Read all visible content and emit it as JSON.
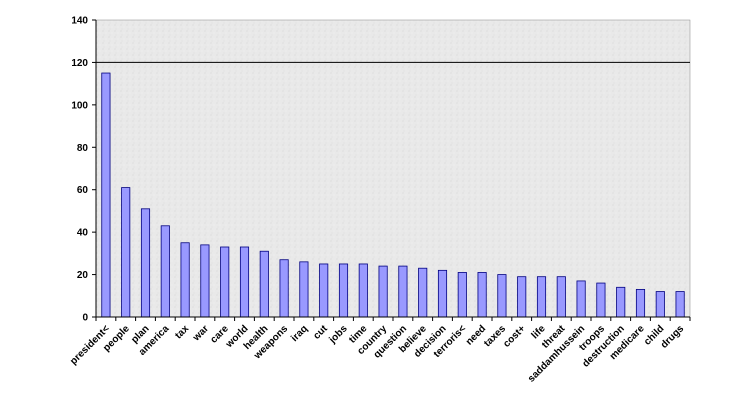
{
  "chart_data": {
    "type": "bar",
    "categories": [
      "president<",
      "people",
      "plan",
      "america",
      "tax",
      "war",
      "care",
      "world",
      "health",
      "weapons",
      "iraq",
      "cut",
      "jobs",
      "time",
      "country",
      "question",
      "believe",
      "decision",
      "terroris<",
      "need",
      "taxes",
      "cost+",
      "life",
      "threat",
      "saddamhussein",
      "troops",
      "destruction",
      "medicare",
      "child",
      "drugs"
    ],
    "values": [
      115,
      61,
      51,
      43,
      35,
      34,
      33,
      33,
      31,
      27,
      26,
      25,
      25,
      25,
      24,
      24,
      23,
      22,
      21,
      21,
      20,
      19,
      19,
      19,
      17,
      16,
      14,
      13,
      12,
      12
    ],
    "ylim": [
      0,
      140
    ],
    "yticks": [
      0,
      20,
      40,
      60,
      80,
      100,
      120,
      140
    ],
    "reference_line": 120,
    "grid": false,
    "colors": {
      "bar_fill": "#9999ff",
      "bar_stroke": "#000080",
      "plot_background": "#e8e8e8",
      "axis": "#000000"
    }
  }
}
